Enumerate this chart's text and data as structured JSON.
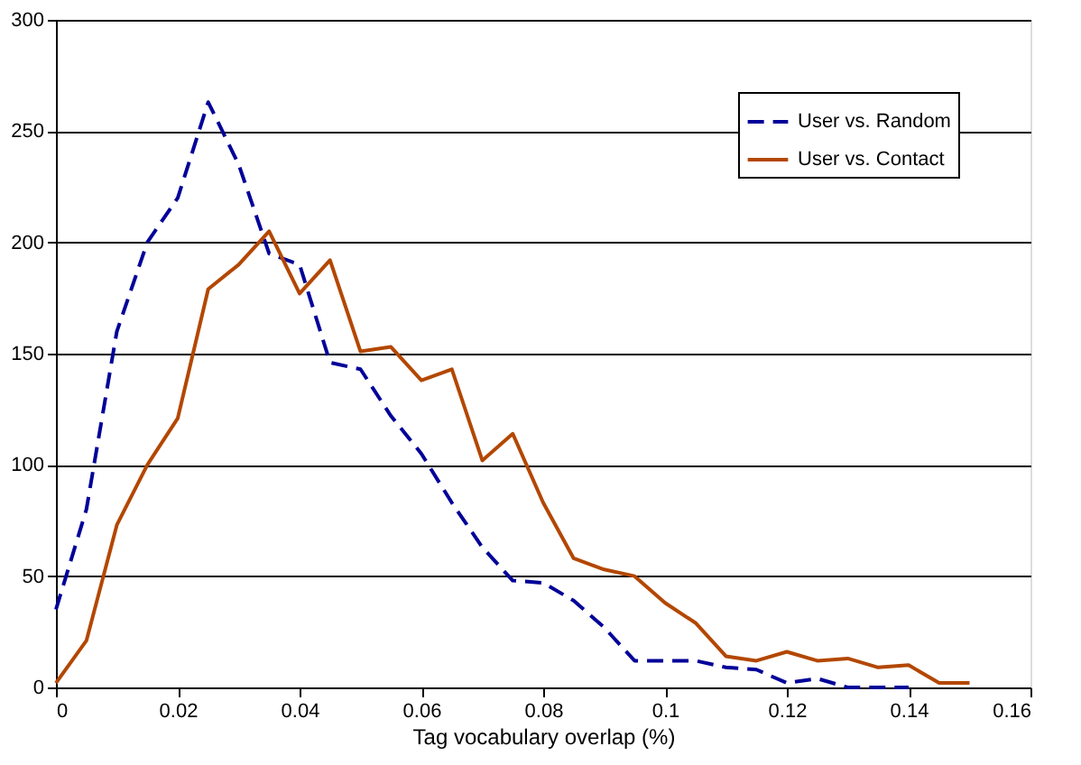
{
  "chart_data": {
    "type": "line",
    "xlabel": "Tag vocabulary overlap (%)",
    "x": [
      0,
      0.005,
      0.01,
      0.015,
      0.02,
      0.025,
      0.03,
      0.035,
      0.04,
      0.045,
      0.05,
      0.055,
      0.06,
      0.065,
      0.07,
      0.075,
      0.08,
      0.085,
      0.09,
      0.095,
      0.1,
      0.105,
      0.11,
      0.115,
      0.12,
      0.125,
      0.13,
      0.135,
      0.14,
      0.145,
      0.15
    ],
    "series": [
      {
        "name": "User vs. Random",
        "color": "#000099",
        "line_style": "dashed",
        "values": [
          35,
          80,
          160,
          200,
          220,
          263,
          235,
          195,
          190,
          146,
          143,
          122,
          105,
          83,
          63,
          48,
          47,
          39,
          27,
          12,
          12,
          12,
          9,
          8,
          2,
          4,
          0,
          0,
          0,
          null,
          null
        ]
      },
      {
        "name": "User vs. Contact",
        "color": "#b34700",
        "line_style": "solid",
        "values": [
          2,
          21,
          73,
          100,
          121,
          179,
          190,
          205,
          177,
          192,
          151,
          153,
          138,
          143,
          102,
          114,
          83,
          58,
          53,
          50,
          38,
          29,
          14,
          12,
          16,
          12,
          13,
          9,
          10,
          2,
          2
        ]
      }
    ],
    "xlim": [
      0,
      0.16
    ],
    "xticks": [
      0,
      0.02,
      0.04,
      0.06,
      0.08,
      0.1,
      0.12,
      0.14,
      0.16
    ],
    "ylim": [
      0,
      300
    ],
    "yticks": [
      0,
      50,
      100,
      150,
      200,
      250,
      300
    ],
    "grid": "y",
    "legend": "top right",
    "marker": "none"
  }
}
